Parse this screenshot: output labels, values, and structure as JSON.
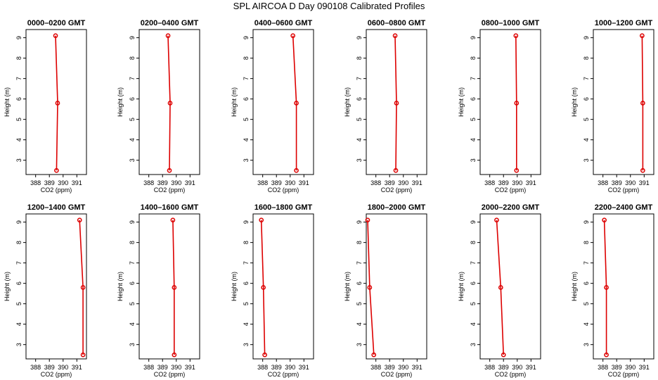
{
  "title": "SPL AIRCOA D  Day 090108  Calibrated Profiles",
  "colors": {
    "profile": "#dd0000",
    "axis": "#000000"
  },
  "chart_data": [
    {
      "type": "line",
      "title": "0000–0200 GMT",
      "xlabel": "CO2 (ppm)",
      "ylabel": "Height (m)",
      "xlim": [
        387.3,
        391.7
      ],
      "ylim": [
        2.3,
        9.4
      ],
      "xticks": [
        388,
        389,
        390,
        391
      ],
      "yticks": [
        3,
        4,
        5,
        6,
        7,
        8,
        9
      ],
      "series": [
        {
          "x": [
            389.45,
            389.6,
            389.52
          ],
          "y": [
            9.1,
            5.8,
            2.5
          ]
        }
      ]
    },
    {
      "type": "line",
      "title": "0200–0400 GMT",
      "xlabel": "CO2 (ppm)",
      "ylabel": "Height (m)",
      "xlim": [
        387.3,
        391.7
      ],
      "ylim": [
        2.3,
        9.4
      ],
      "xticks": [
        388,
        389,
        390,
        391
      ],
      "yticks": [
        3,
        4,
        5,
        6,
        7,
        8,
        9
      ],
      "series": [
        {
          "x": [
            389.4,
            389.55,
            389.5
          ],
          "y": [
            9.1,
            5.8,
            2.5
          ]
        }
      ]
    },
    {
      "type": "line",
      "title": "0400–0600 GMT",
      "xlabel": "CO2 (ppm)",
      "ylabel": "Height (m)",
      "xlim": [
        387.3,
        391.7
      ],
      "ylim": [
        2.3,
        9.4
      ],
      "xticks": [
        388,
        389,
        390,
        391
      ],
      "yticks": [
        3,
        4,
        5,
        6,
        7,
        8,
        9
      ],
      "series": [
        {
          "x": [
            390.2,
            390.45,
            390.45
          ],
          "y": [
            9.1,
            5.8,
            2.5
          ]
        }
      ]
    },
    {
      "type": "line",
      "title": "0600–0800 GMT",
      "xlabel": "CO2 (ppm)",
      "ylabel": "Height (m)",
      "xlim": [
        387.3,
        391.7
      ],
      "ylim": [
        2.3,
        9.4
      ],
      "xticks": [
        388,
        389,
        390,
        391
      ],
      "yticks": [
        3,
        4,
        5,
        6,
        7,
        8,
        9
      ],
      "series": [
        {
          "x": [
            389.4,
            389.5,
            389.45
          ],
          "y": [
            9.1,
            5.8,
            2.5
          ]
        }
      ]
    },
    {
      "type": "line",
      "title": "0800–1000 GMT",
      "xlabel": "CO2 (ppm)",
      "ylabel": "Height (m)",
      "xlim": [
        387.3,
        391.7
      ],
      "ylim": [
        2.3,
        9.4
      ],
      "xticks": [
        388,
        389,
        390,
        391
      ],
      "yticks": [
        3,
        4,
        5,
        6,
        7,
        8,
        9
      ],
      "series": [
        {
          "x": [
            389.9,
            389.95,
            389.95
          ],
          "y": [
            9.1,
            5.8,
            2.5
          ]
        }
      ]
    },
    {
      "type": "line",
      "title": "1000–1200 GMT",
      "xlabel": "CO2 (ppm)",
      "ylabel": "Height (m)",
      "xlim": [
        387.3,
        391.7
      ],
      "ylim": [
        2.3,
        9.4
      ],
      "xticks": [
        388,
        389,
        390,
        391
      ],
      "yticks": [
        3,
        4,
        5,
        6,
        7,
        8,
        9
      ],
      "series": [
        {
          "x": [
            390.85,
            390.9,
            390.9
          ],
          "y": [
            9.1,
            5.8,
            2.5
          ]
        }
      ]
    },
    {
      "type": "line",
      "title": "1200–1400 GMT",
      "xlabel": "CO2 (ppm)",
      "ylabel": "Height (m)",
      "xlim": [
        387.3,
        391.7
      ],
      "ylim": [
        2.3,
        9.4
      ],
      "xticks": [
        388,
        389,
        390,
        391
      ],
      "yticks": [
        3,
        4,
        5,
        6,
        7,
        8,
        9
      ],
      "series": [
        {
          "x": [
            391.2,
            391.45,
            391.45
          ],
          "y": [
            9.1,
            5.8,
            2.5
          ]
        }
      ]
    },
    {
      "type": "line",
      "title": "1400–1600 GMT",
      "xlabel": "CO2 (ppm)",
      "ylabel": "Height (m)",
      "xlim": [
        387.3,
        391.7
      ],
      "ylim": [
        2.3,
        9.4
      ],
      "xticks": [
        388,
        389,
        390,
        391
      ],
      "yticks": [
        3,
        4,
        5,
        6,
        7,
        8,
        9
      ],
      "series": [
        {
          "x": [
            389.75,
            389.85,
            389.85
          ],
          "y": [
            9.1,
            5.8,
            2.5
          ]
        }
      ]
    },
    {
      "type": "line",
      "title": "1600–1800 GMT",
      "xlabel": "CO2 (ppm)",
      "ylabel": "Height (m)",
      "xlim": [
        387.3,
        391.7
      ],
      "ylim": [
        2.3,
        9.4
      ],
      "xticks": [
        388,
        389,
        390,
        391
      ],
      "yticks": [
        3,
        4,
        5,
        6,
        7,
        8,
        9
      ],
      "series": [
        {
          "x": [
            387.9,
            388.05,
            388.15
          ],
          "y": [
            9.1,
            5.8,
            2.5
          ]
        }
      ]
    },
    {
      "type": "line",
      "title": "1800–2000 GMT",
      "xlabel": "CO2 (ppm)",
      "ylabel": "Height (m)",
      "xlim": [
        387.3,
        391.7
      ],
      "ylim": [
        2.3,
        9.4
      ],
      "xticks": [
        388,
        389,
        390,
        391
      ],
      "yticks": [
        3,
        4,
        5,
        6,
        7,
        8,
        9
      ],
      "series": [
        {
          "x": [
            387.4,
            387.55,
            387.85
          ],
          "y": [
            9.1,
            5.8,
            2.5
          ]
        }
      ]
    },
    {
      "type": "line",
      "title": "2000–2200 GMT",
      "xlabel": "CO2 (ppm)",
      "ylabel": "Height (m)",
      "xlim": [
        387.3,
        391.7
      ],
      "ylim": [
        2.3,
        9.4
      ],
      "xticks": [
        388,
        389,
        390,
        391
      ],
      "yticks": [
        3,
        4,
        5,
        6,
        7,
        8,
        9
      ],
      "series": [
        {
          "x": [
            388.5,
            388.8,
            389.0
          ],
          "y": [
            9.1,
            5.8,
            2.5
          ]
        }
      ]
    },
    {
      "type": "line",
      "title": "2200–2400 GMT",
      "xlabel": "CO2 (ppm)",
      "ylabel": "Height (m)",
      "xlim": [
        387.3,
        391.7
      ],
      "ylim": [
        2.3,
        9.4
      ],
      "xticks": [
        388,
        389,
        390,
        391
      ],
      "yticks": [
        3,
        4,
        5,
        6,
        7,
        8,
        9
      ],
      "series": [
        {
          "x": [
            388.1,
            388.25,
            388.25
          ],
          "y": [
            9.1,
            5.8,
            2.5
          ]
        }
      ]
    }
  ]
}
